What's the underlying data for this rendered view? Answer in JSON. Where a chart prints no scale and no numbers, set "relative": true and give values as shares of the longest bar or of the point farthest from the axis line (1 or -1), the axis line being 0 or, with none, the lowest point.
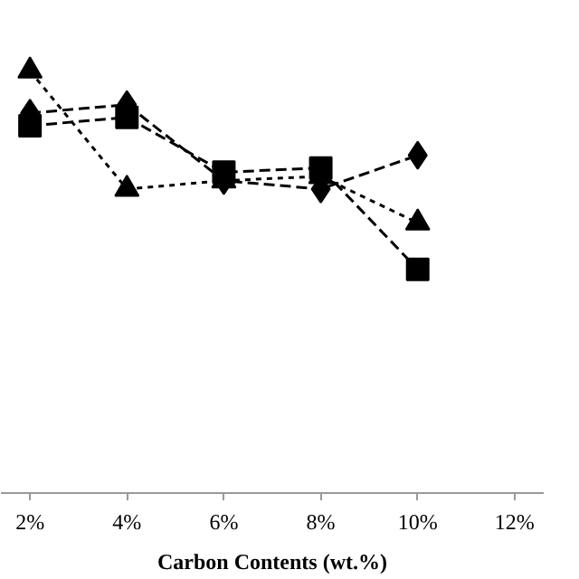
{
  "chart_data": {
    "type": "line",
    "xlabel": "Carbon Contents (wt.%)",
    "relative": true,
    "x": [
      2,
      4,
      6,
      8,
      10
    ],
    "xlim": [
      1.4,
      12.6
    ],
    "xticks": [
      {
        "value": 2,
        "label": "2%"
      },
      {
        "value": 4,
        "label": "4%"
      },
      {
        "value": 6,
        "label": "6%"
      },
      {
        "value": 8,
        "label": "8%"
      },
      {
        "value": 10,
        "label": "10%"
      },
      {
        "value": 12,
        "label": "12%"
      }
    ],
    "series": [
      {
        "color": "#000000",
        "marker": "diamond",
        "line_style": "dashed",
        "values": [
          0.9,
          0.92,
          0.74,
          0.72,
          0.8
        ]
      },
      {
        "color": "#000000",
        "marker": "square",
        "line_style": "dashed",
        "values": [
          0.87,
          0.89,
          0.76,
          0.77,
          0.53
        ]
      },
      {
        "color": "#000000",
        "marker": "triangle",
        "line_style": "dotted",
        "values": [
          1,
          0.72,
          0.74,
          0.75,
          0.64
        ]
      }
    ],
    "grid": false
  }
}
